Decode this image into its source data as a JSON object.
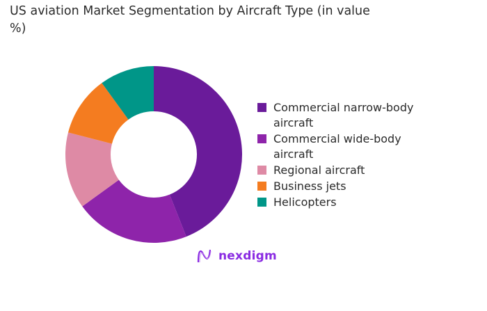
{
  "chart_data": {
    "type": "pie",
    "donut": true,
    "title": "US aviation Market Segmentation by Aircraft Type (in value %)",
    "categories": [
      "Commercial narrow-body aircraft",
      "Commercial wide-body aircraft",
      "Regional aircraft",
      "Business jets",
      "Helicopters"
    ],
    "values": [
      44,
      21,
      14,
      11,
      10
    ],
    "colors": [
      "#6a1b9a",
      "#8e24aa",
      "#de8aa5",
      "#f47c20",
      "#009688"
    ],
    "legend_position": "right"
  },
  "logo": {
    "text": "nexdigm"
  }
}
